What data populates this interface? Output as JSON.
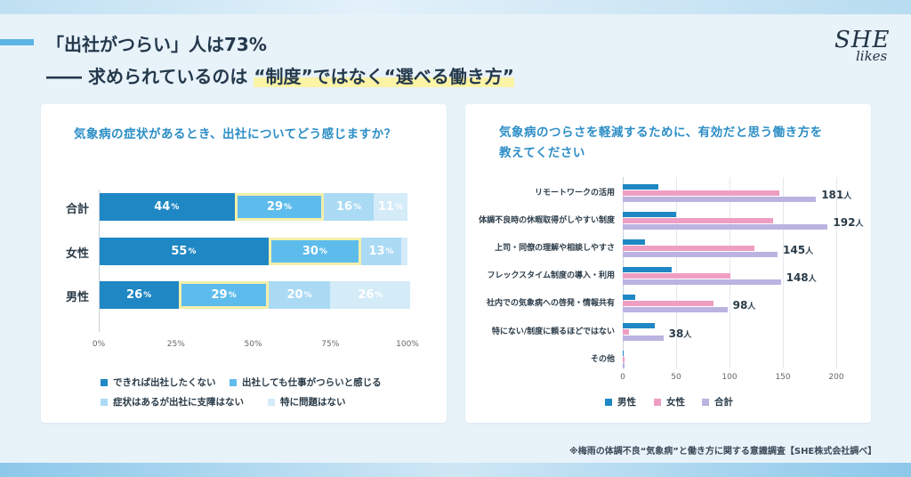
{
  "headline": {
    "line1": "「出社がつらい」人は73%",
    "line2_prefix": "―― 求められているのは ",
    "line2_highlight": "“制度”ではなく“選べる働き方”"
  },
  "logo": {
    "main": "SHE",
    "sub": "likes"
  },
  "footnote": "※梅雨の体調不良“気象病”と働き方に関する意識調査【SHE株式会社調べ】",
  "colors": {
    "c1": "#1f87c4",
    "c2": "#5ebcec",
    "c3": "#abdaf5",
    "c4": "#d4ebf8",
    "male": "#1f87c4",
    "female": "#ef9ec3",
    "total": "#bbb3e0",
    "highlight": "#f3efaa",
    "title": "#2c8ec6"
  },
  "chart_data": [
    {
      "type": "bar",
      "stacked": true,
      "orientation": "horizontal",
      "title": "気象病の症状があるとき、出社についてどう感じますか？",
      "categories": [
        "合計",
        "女性",
        "男性"
      ],
      "unit_suffix": "%",
      "series": [
        {
          "name": "できれば出社したくない",
          "values": [
            44,
            55,
            26
          ]
        },
        {
          "name": "出社しても仕事がつらいと感じる",
          "values": [
            29,
            30,
            29
          ]
        },
        {
          "name": "症状はあるが出社に支障はない",
          "values": [
            16,
            13,
            20
          ]
        },
        {
          "name": "特に問題はない",
          "values": [
            11,
            2,
            26
          ]
        }
      ],
      "highlight_series": 1,
      "xlim": [
        0,
        100
      ],
      "x_ticks": [
        "0%",
        "25%",
        "50%",
        "75%",
        "100%"
      ],
      "grid": false,
      "legend_position": "bottom"
    },
    {
      "type": "bar",
      "orientation": "horizontal",
      "title": "気象病のつらさを軽減するために、有効だと思う働き方を教えてください",
      "title_lines": [
        "気象病のつらさを軽減するために、有効だと思う働き方を",
        "教えてください"
      ],
      "categories": [
        "リモートワークの活用",
        "体調不良時の休暇取得がしやすい制度",
        "上司・同僚の理解や相談しやすさ",
        "フレックスタイム制度の導入・利用",
        "社内での気象病への啓発・情報共有",
        "特にない/制度に頼るほどではない",
        "その他"
      ],
      "series": [
        {
          "name": "男性",
          "values": [
            33,
            50,
            21,
            46,
            12,
            30,
            0
          ]
        },
        {
          "name": "女性",
          "values": [
            147,
            141,
            123,
            101,
            85,
            6,
            2
          ]
        },
        {
          "name": "合計",
          "values": [
            181,
            192,
            145,
            148,
            98,
            38,
            2
          ]
        }
      ],
      "total_labels": [
        "181",
        "192",
        "145",
        "148",
        "98",
        "38",
        ""
      ],
      "total_unit": "人",
      "xlim": [
        0,
        200
      ],
      "x_ticks": [
        "0",
        "50",
        "100",
        "150",
        "200"
      ],
      "grid": true,
      "legend_position": "bottom"
    }
  ]
}
